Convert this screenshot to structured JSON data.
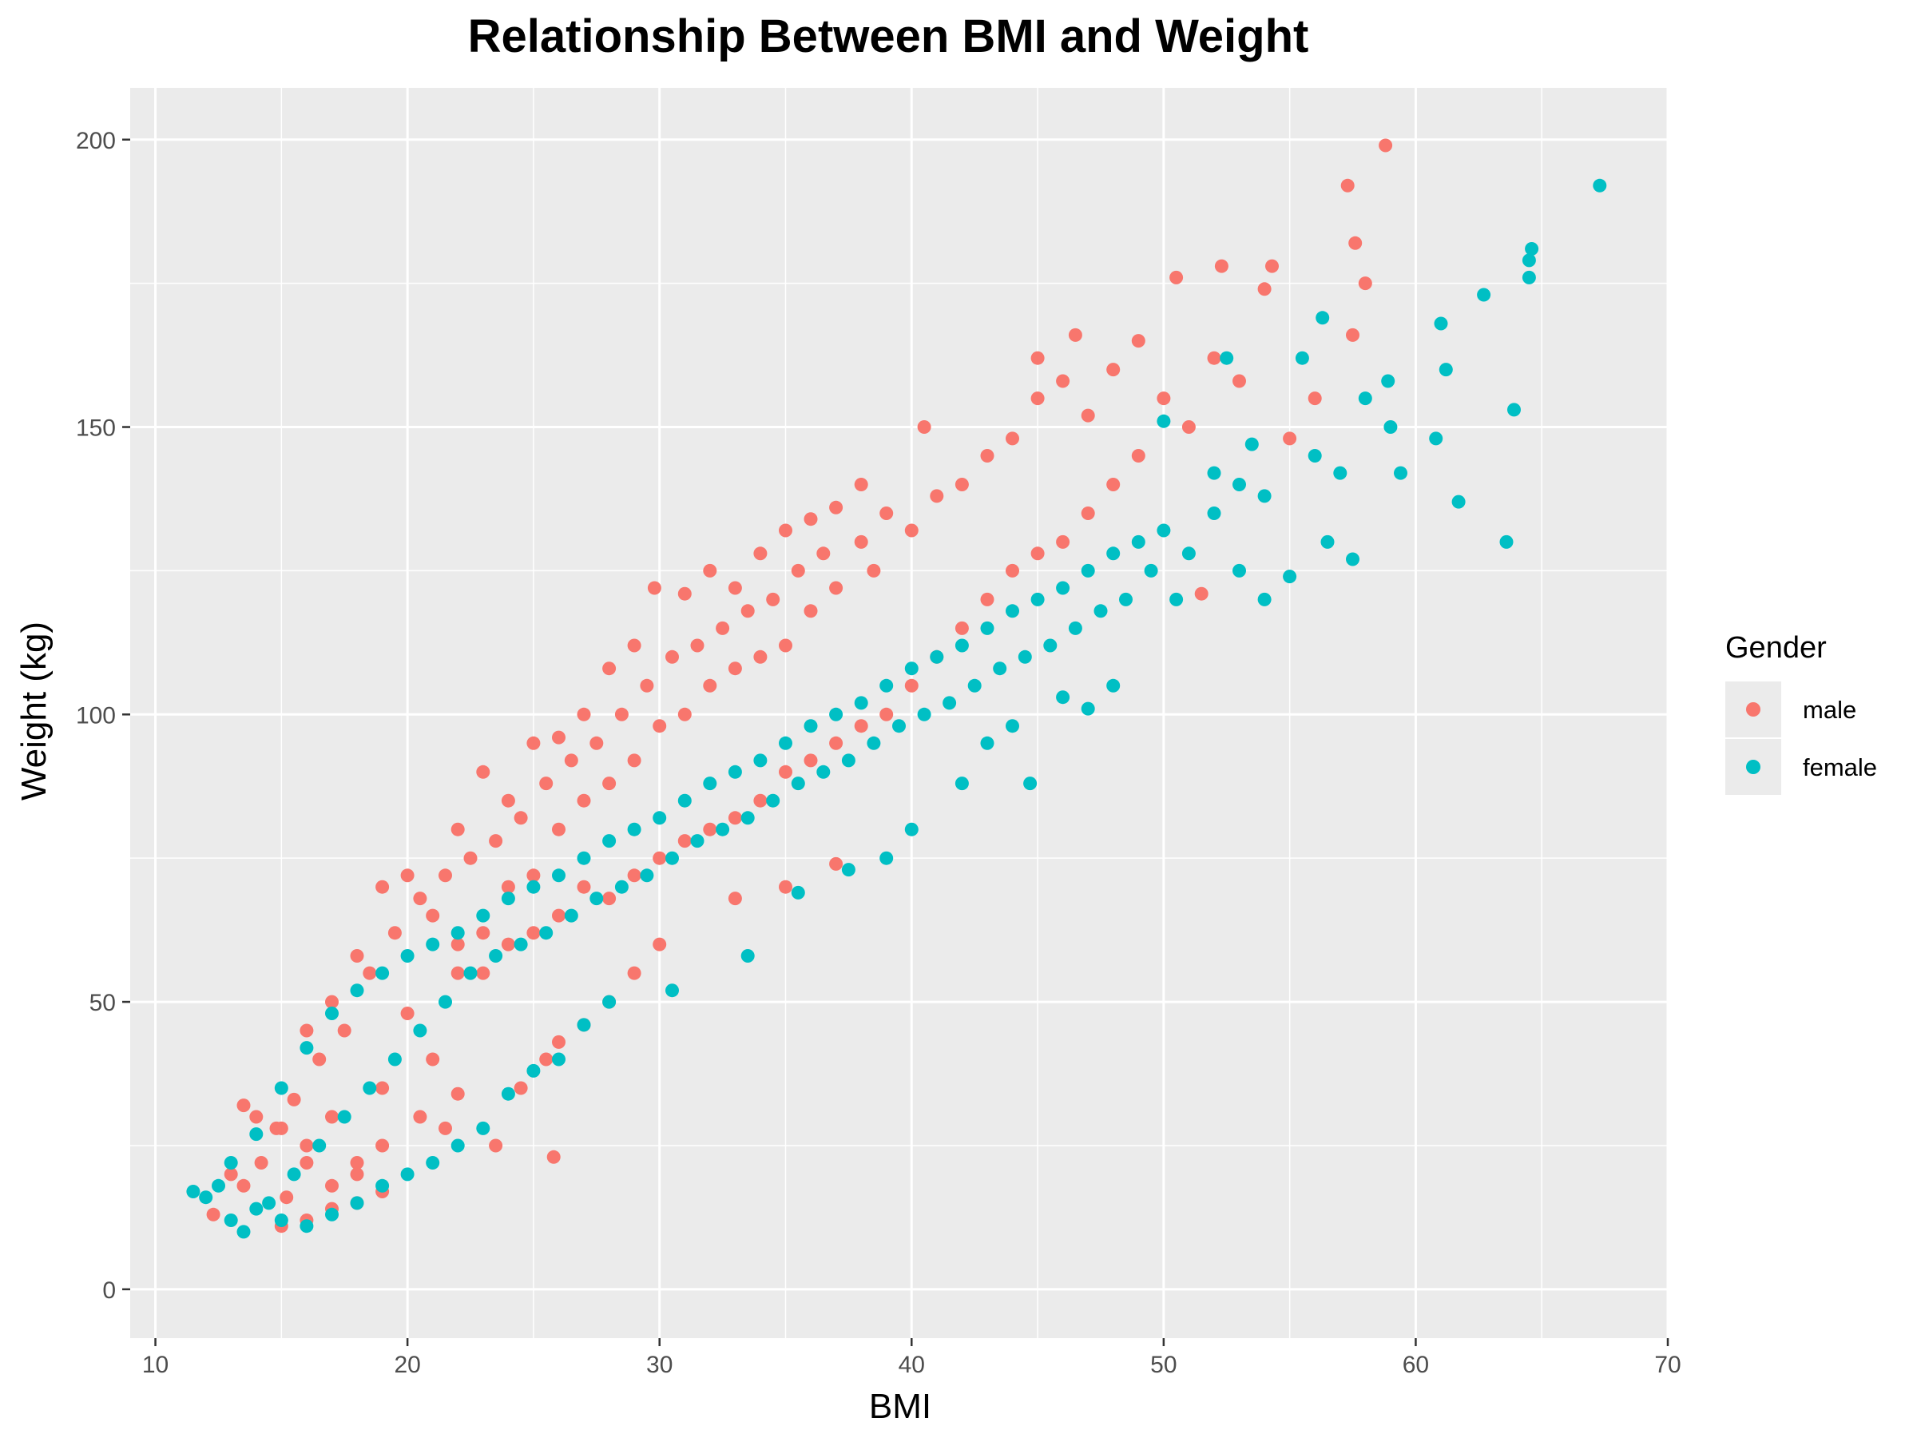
{
  "chart_data": {
    "type": "scatter",
    "title": "Relationship Between BMI and Weight",
    "xlabel": "BMI",
    "ylabel": "Weight (kg)",
    "xlim": [
      9,
      70
    ],
    "ylim": [
      -8.5,
      209
    ],
    "x_ticks": [
      10,
      20,
      30,
      40,
      50,
      60,
      70
    ],
    "y_ticks": [
      0,
      50,
      100,
      150,
      200
    ],
    "grid": true,
    "legend": {
      "title": "Gender",
      "position": "right"
    },
    "series": [
      {
        "name": "male",
        "color": "#F8766D",
        "points": [
          [
            12.3,
            13
          ],
          [
            13.5,
            18
          ],
          [
            14.2,
            22
          ],
          [
            14.8,
            28
          ],
          [
            15.2,
            16
          ],
          [
            15.5,
            33
          ],
          [
            16,
            25
          ],
          [
            16.5,
            40
          ],
          [
            17,
            30
          ],
          [
            17.5,
            45
          ],
          [
            18,
            22
          ],
          [
            18.5,
            55
          ],
          [
            19,
            35
          ],
          [
            19.5,
            62
          ],
          [
            20,
            48
          ],
          [
            20.5,
            68
          ],
          [
            21,
            40
          ],
          [
            21.5,
            72
          ],
          [
            22,
            55
          ],
          [
            22.5,
            75
          ],
          [
            23,
            62
          ],
          [
            23.5,
            78
          ],
          [
            24,
            70
          ],
          [
            24.5,
            82
          ],
          [
            25,
            72
          ],
          [
            25.5,
            88
          ],
          [
            26,
            80
          ],
          [
            26.5,
            92
          ],
          [
            27,
            85
          ],
          [
            27.5,
            95
          ],
          [
            28,
            88
          ],
          [
            28.5,
            100
          ],
          [
            29,
            92
          ],
          [
            29.5,
            105
          ],
          [
            30,
            98
          ],
          [
            30.5,
            110
          ],
          [
            31,
            100
          ],
          [
            31.5,
            112
          ],
          [
            32,
            105
          ],
          [
            32.5,
            115
          ],
          [
            33,
            108
          ],
          [
            33.5,
            118
          ],
          [
            34,
            110
          ],
          [
            34.5,
            120
          ],
          [
            35,
            112
          ],
          [
            35.5,
            125
          ],
          [
            36,
            118
          ],
          [
            36.5,
            128
          ],
          [
            37,
            122
          ],
          [
            38,
            130
          ],
          [
            38.5,
            125
          ],
          [
            39,
            135
          ],
          [
            40,
            132
          ],
          [
            40.5,
            150
          ],
          [
            41,
            138
          ],
          [
            42,
            140
          ],
          [
            43,
            145
          ],
          [
            44,
            148
          ],
          [
            45,
            155
          ],
          [
            45,
            162
          ],
          [
            46,
            158
          ],
          [
            46.5,
            166
          ],
          [
            47,
            152
          ],
          [
            48,
            160
          ],
          [
            49,
            165
          ],
          [
            50,
            155
          ],
          [
            50.5,
            176
          ],
          [
            51,
            150
          ],
          [
            52,
            162
          ],
          [
            52.3,
            178
          ],
          [
            53,
            158
          ],
          [
            54,
            174
          ],
          [
            54.3,
            178
          ],
          [
            55,
            148
          ],
          [
            56,
            155
          ],
          [
            57.3,
            192
          ],
          [
            57.6,
            182
          ],
          [
            58,
            175
          ],
          [
            58.8,
            199
          ],
          [
            57.5,
            166
          ],
          [
            15,
            11
          ],
          [
            16,
            12
          ],
          [
            17,
            14
          ],
          [
            18,
            15
          ],
          [
            19,
            17
          ],
          [
            17,
            50
          ],
          [
            18,
            58
          ],
          [
            16,
            45
          ],
          [
            20,
            72
          ],
          [
            19,
            70
          ],
          [
            21,
            65
          ],
          [
            22,
            80
          ],
          [
            23,
            90
          ],
          [
            24,
            85
          ],
          [
            25,
            95
          ],
          [
            26,
            96
          ],
          [
            27,
            100
          ],
          [
            28,
            108
          ],
          [
            29,
            112
          ],
          [
            29.8,
            122
          ],
          [
            31,
            121
          ],
          [
            32,
            125
          ],
          [
            33,
            122
          ],
          [
            34,
            128
          ],
          [
            35,
            132
          ],
          [
            36,
            134
          ],
          [
            37,
            136
          ],
          [
            38,
            140
          ],
          [
            22,
            60
          ],
          [
            23,
            55
          ],
          [
            24,
            60
          ],
          [
            25,
            62
          ],
          [
            26,
            65
          ],
          [
            27,
            70
          ],
          [
            28,
            68
          ],
          [
            29,
            72
          ],
          [
            30,
            75
          ],
          [
            31,
            78
          ],
          [
            32,
            80
          ],
          [
            33,
            82
          ],
          [
            34,
            85
          ],
          [
            35,
            90
          ],
          [
            36,
            92
          ],
          [
            37,
            95
          ],
          [
            38,
            98
          ],
          [
            39,
            100
          ],
          [
            40,
            105
          ],
          [
            41,
            110
          ],
          [
            42,
            115
          ],
          [
            43,
            120
          ],
          [
            44,
            125
          ],
          [
            45,
            128
          ],
          [
            46,
            130
          ],
          [
            47,
            135
          ],
          [
            48,
            140
          ],
          [
            49,
            145
          ],
          [
            51.5,
            121
          ],
          [
            25.8,
            23
          ],
          [
            22,
            34
          ],
          [
            23.5,
            25
          ],
          [
            24.5,
            35
          ],
          [
            25.5,
            40
          ],
          [
            26,
            43
          ],
          [
            27,
            46
          ],
          [
            28,
            50
          ],
          [
            29,
            55
          ],
          [
            30,
            60
          ],
          [
            33,
            68
          ],
          [
            35,
            70
          ],
          [
            37,
            74
          ],
          [
            20.5,
            30
          ],
          [
            21.5,
            28
          ],
          [
            19,
            25
          ],
          [
            18,
            20
          ],
          [
            17,
            18
          ],
          [
            16,
            22
          ],
          [
            15,
            28
          ],
          [
            14,
            30
          ],
          [
            13.5,
            32
          ],
          [
            13,
            20
          ]
        ]
      },
      {
        "name": "female",
        "color": "#00BFC4",
        "points": [
          [
            11.5,
            17
          ],
          [
            12.5,
            18
          ],
          [
            13,
            22
          ],
          [
            13.5,
            10
          ],
          [
            14,
            27
          ],
          [
            14.5,
            15
          ],
          [
            15,
            35
          ],
          [
            15.5,
            20
          ],
          [
            16,
            42
          ],
          [
            16.5,
            25
          ],
          [
            17,
            48
          ],
          [
            17.5,
            30
          ],
          [
            18,
            52
          ],
          [
            18.5,
            35
          ],
          [
            19,
            55
          ],
          [
            19.5,
            40
          ],
          [
            20,
            58
          ],
          [
            20.5,
            45
          ],
          [
            21,
            60
          ],
          [
            21.5,
            50
          ],
          [
            22,
            62
          ],
          [
            22.5,
            55
          ],
          [
            23,
            65
          ],
          [
            23.5,
            58
          ],
          [
            24,
            68
          ],
          [
            24.5,
            60
          ],
          [
            25,
            70
          ],
          [
            25.5,
            62
          ],
          [
            26,
            72
          ],
          [
            26.5,
            65
          ],
          [
            27,
            75
          ],
          [
            27.5,
            68
          ],
          [
            28,
            78
          ],
          [
            28.5,
            70
          ],
          [
            29,
            80
          ],
          [
            29.5,
            72
          ],
          [
            30,
            82
          ],
          [
            30.5,
            75
          ],
          [
            31,
            85
          ],
          [
            31.5,
            78
          ],
          [
            32,
            88
          ],
          [
            32.5,
            80
          ],
          [
            33,
            90
          ],
          [
            33.5,
            82
          ],
          [
            34,
            92
          ],
          [
            34.5,
            85
          ],
          [
            35,
            95
          ],
          [
            35.5,
            88
          ],
          [
            36,
            98
          ],
          [
            36.5,
            90
          ],
          [
            37,
            100
          ],
          [
            37.5,
            92
          ],
          [
            38,
            102
          ],
          [
            38.5,
            95
          ],
          [
            39,
            105
          ],
          [
            39.5,
            98
          ],
          [
            40,
            108
          ],
          [
            40.5,
            100
          ],
          [
            41,
            110
          ],
          [
            41.5,
            102
          ],
          [
            42,
            112
          ],
          [
            42.5,
            105
          ],
          [
            43,
            115
          ],
          [
            43.5,
            108
          ],
          [
            44,
            118
          ],
          [
            44.5,
            110
          ],
          [
            45,
            120
          ],
          [
            45.5,
            112
          ],
          [
            46,
            122
          ],
          [
            46.5,
            115
          ],
          [
            47,
            125
          ],
          [
            47.5,
            118
          ],
          [
            48,
            128
          ],
          [
            48.5,
            120
          ],
          [
            49,
            130
          ],
          [
            49.5,
            125
          ],
          [
            50,
            132
          ],
          [
            50.5,
            120
          ],
          [
            51,
            128
          ],
          [
            52,
            135
          ],
          [
            53,
            140
          ],
          [
            54,
            138
          ],
          [
            55,
            124
          ],
          [
            56,
            145
          ],
          [
            56.5,
            130
          ],
          [
            57,
            142
          ],
          [
            57.5,
            127
          ],
          [
            58,
            155
          ],
          [
            58.9,
            158
          ],
          [
            59,
            150
          ],
          [
            59.4,
            142
          ],
          [
            60.8,
            148
          ],
          [
            61,
            168
          ],
          [
            61.2,
            160
          ],
          [
            61.7,
            137
          ],
          [
            62.7,
            173
          ],
          [
            63.6,
            130
          ],
          [
            63.9,
            153
          ],
          [
            64.5,
            176
          ],
          [
            64.5,
            179
          ],
          [
            64.6,
            181
          ],
          [
            67.3,
            192
          ],
          [
            52.5,
            162
          ],
          [
            55.5,
            162
          ],
          [
            56.3,
            169
          ],
          [
            50,
            151
          ],
          [
            53.5,
            147
          ],
          [
            54,
            120
          ],
          [
            53,
            125
          ],
          [
            52,
            142
          ],
          [
            44.7,
            88
          ],
          [
            30.5,
            52
          ],
          [
            33.5,
            58
          ],
          [
            35.5,
            69
          ],
          [
            37.5,
            73
          ],
          [
            39,
            75
          ],
          [
            40,
            80
          ],
          [
            42,
            88
          ],
          [
            43,
            95
          ],
          [
            44,
            98
          ],
          [
            46,
            103
          ],
          [
            47,
            101
          ],
          [
            48,
            105
          ],
          [
            28,
            50
          ],
          [
            27,
            46
          ],
          [
            26,
            40
          ],
          [
            25,
            38
          ],
          [
            24,
            34
          ],
          [
            23,
            28
          ],
          [
            22,
            25
          ],
          [
            21,
            22
          ],
          [
            20,
            20
          ],
          [
            19,
            18
          ],
          [
            18,
            15
          ],
          [
            17,
            13
          ],
          [
            16,
            11
          ],
          [
            15,
            12
          ],
          [
            14,
            14
          ],
          [
            13,
            12
          ],
          [
            12,
            16
          ]
        ]
      }
    ]
  }
}
